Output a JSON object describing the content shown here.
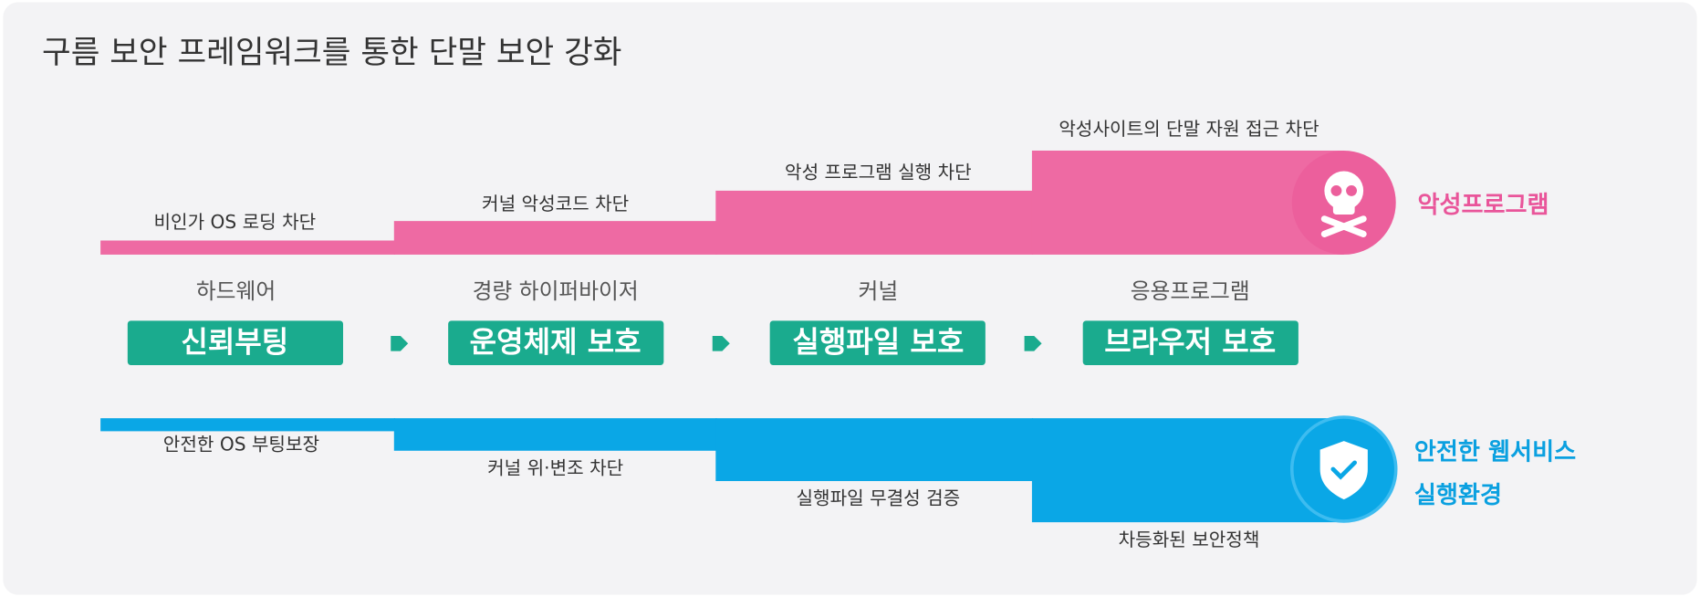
{
  "title": "구름 보안 프레임워크를 통한 단말 보안 강화",
  "threat": {
    "label": "악성프로그램",
    "steps": [
      "비인가 OS 로딩 차단",
      "커널 악성코드 차단",
      "악성 프로그램 실행 차단",
      "악성사이트의 단말 자원 접근 차단"
    ]
  },
  "stages": [
    {
      "category": "하드웨어",
      "label": "신뢰부팅"
    },
    {
      "category": "경량 하이퍼바이저",
      "label": "운영체제 보호"
    },
    {
      "category": "커널",
      "label": "실행파일 보호"
    },
    {
      "category": "응용프로그램",
      "label": "브라우저 보호"
    }
  ],
  "safe": {
    "label": [
      "안전한 웹서비스",
      "실행환경"
    ],
    "steps": [
      "안전한 OS 부팅보장",
      "커널 위·변조 차단",
      "실행파일 무결성 검증",
      "차등화된 보안정책"
    ]
  }
}
